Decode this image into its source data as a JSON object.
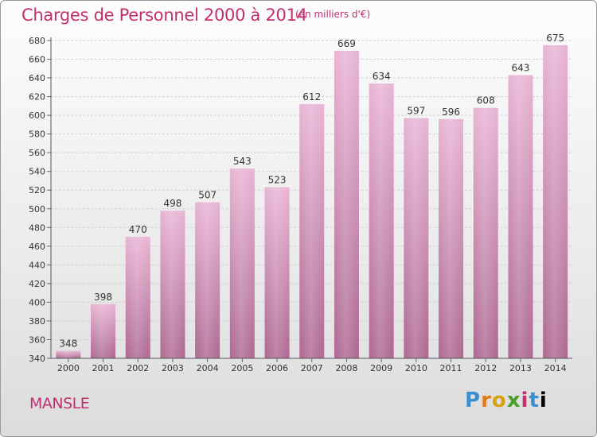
{
  "header": {
    "title": "Charges de Personnel 2000 à 2014",
    "subtitle": "(en milliers d'€)"
  },
  "footer": {
    "place": "MANSLE",
    "logo": [
      "P",
      "r",
      "o",
      "x",
      "i",
      "t",
      "i"
    ]
  },
  "colors": {
    "accent": "#c0306e",
    "bar_light": "#e6aed0",
    "bar_dark": "#b06a94",
    "grid": "#d2d2d2"
  },
  "chart_data": {
    "type": "bar",
    "title": "Charges de Personnel 2000 à 2014",
    "subtitle": "(en milliers d'€)",
    "xlabel": "",
    "ylabel": "",
    "categories": [
      "2000",
      "2001",
      "2002",
      "2003",
      "2004",
      "2005",
      "2006",
      "2007",
      "2008",
      "2009",
      "2010",
      "2011",
      "2012",
      "2013",
      "2014"
    ],
    "values": [
      348,
      398,
      470,
      498,
      507,
      543,
      523,
      612,
      669,
      634,
      597,
      596,
      608,
      643,
      675
    ],
    "ylim": [
      340,
      680
    ],
    "yticks": [
      340,
      360,
      380,
      400,
      420,
      440,
      460,
      480,
      500,
      520,
      540,
      560,
      580,
      600,
      620,
      640,
      660,
      680
    ],
    "grid": true,
    "legend": "none"
  }
}
